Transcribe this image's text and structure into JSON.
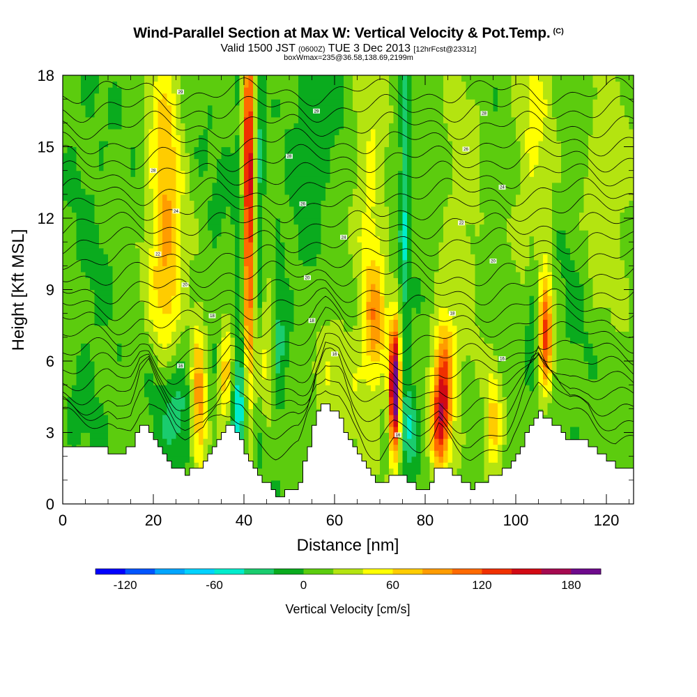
{
  "header": {
    "title": "Wind-Parallel Section at Max W: Vertical Velocity & Pot.Temp.",
    "copyright": "(C)",
    "subtitle_main": "Valid 1500 JST",
    "subtitle_small1": "(0600Z)",
    "subtitle_mid": "TUE 3 Dec 2013",
    "subtitle_small2": "[12hrFcst@2331z]",
    "subtitle2": "boxWmax=235@36.58,138.69,2199m"
  },
  "chart_data": {
    "type": "heatmap",
    "xlabel": "Distance [nm]",
    "ylabel": "Height [Kft MSL]",
    "xlim": [
      0,
      126
    ],
    "ylim": [
      0,
      18
    ],
    "xticks": [
      "0",
      "20",
      "40",
      "60",
      "80",
      "100",
      "120"
    ],
    "yticks": [
      "0",
      "3",
      "6",
      "9",
      "12",
      "15",
      "18"
    ],
    "colorbar": {
      "title": "Vertical Velocity [cm/s]",
      "labels": [
        "-120",
        "-60",
        "0",
        "60",
        "120",
        "180"
      ],
      "min": -140,
      "max": 200,
      "step": 20,
      "colors": [
        "#0000ff",
        "#0055ff",
        "#00a5ff",
        "#00d2ff",
        "#00eccc",
        "#1acc6e",
        "#0aab1e",
        "#5ccc0e",
        "#b4e410",
        "#ffff00",
        "#ffcc00",
        "#ff9c00",
        "#ff6a00",
        "#f03000",
        "#d20a14",
        "#a50a50",
        "#6e0a8c"
      ]
    },
    "terrain": [
      {
        "x": 0,
        "h": 2.3
      },
      {
        "x": 10,
        "h": 2.3
      },
      {
        "x": 12,
        "h": 2.0
      },
      {
        "x": 15,
        "h": 2.3
      },
      {
        "x": 17,
        "h": 3.2
      },
      {
        "x": 19,
        "h": 3.3
      },
      {
        "x": 21,
        "h": 2.5
      },
      {
        "x": 23,
        "h": 2.0
      },
      {
        "x": 25,
        "h": 1.5
      },
      {
        "x": 27,
        "h": 1.3
      },
      {
        "x": 31,
        "h": 1.6
      },
      {
        "x": 35,
        "h": 3.0
      },
      {
        "x": 37,
        "h": 3.3
      },
      {
        "x": 40,
        "h": 2.4
      },
      {
        "x": 43,
        "h": 1.4
      },
      {
        "x": 47,
        "h": 0.4
      },
      {
        "x": 52,
        "h": 0.5
      },
      {
        "x": 56,
        "h": 3.6
      },
      {
        "x": 58,
        "h": 4.2
      },
      {
        "x": 61,
        "h": 3.7
      },
      {
        "x": 64,
        "h": 2.4
      },
      {
        "x": 67,
        "h": 1.5
      },
      {
        "x": 70,
        "h": 0.7
      },
      {
        "x": 73,
        "h": 1.3
      },
      {
        "x": 76,
        "h": 1.1
      },
      {
        "x": 79,
        "h": 0.4
      },
      {
        "x": 81,
        "h": 0.6
      },
      {
        "x": 83,
        "h": 1.6
      },
      {
        "x": 86,
        "h": 1.3
      },
      {
        "x": 90,
        "h": 0.7
      },
      {
        "x": 94,
        "h": 1.0
      },
      {
        "x": 98,
        "h": 1.4
      },
      {
        "x": 102,
        "h": 2.7
      },
      {
        "x": 105,
        "h": 3.9
      },
      {
        "x": 108,
        "h": 3.5
      },
      {
        "x": 112,
        "h": 2.6
      },
      {
        "x": 116,
        "h": 2.6
      },
      {
        "x": 119,
        "h": 2.1
      },
      {
        "x": 122,
        "h": 1.6
      },
      {
        "x": 126,
        "h": 1.6
      }
    ],
    "w_field": [
      {
        "x": 6,
        "z": 8,
        "sx": 4,
        "sz": 12,
        "amp": -10
      },
      {
        "x": 22.5,
        "z": 14,
        "sx": 2.5,
        "sz": 5,
        "amp": 58
      },
      {
        "x": 23.5,
        "z": 9.5,
        "sx": 3,
        "sz": 3,
        "amp": 35
      },
      {
        "x": 25,
        "z": 4.3,
        "sx": 3.5,
        "sz": 1.8,
        "amp": -45
      },
      {
        "x": 30,
        "z": 4.5,
        "sx": 1.3,
        "sz": 2.4,
        "amp": 95
      },
      {
        "x": 36,
        "z": 5.2,
        "sx": 1.2,
        "sz": 1.8,
        "amp": 75
      },
      {
        "x": 34,
        "z": 9,
        "sx": 3,
        "sz": 9,
        "amp": -8
      },
      {
        "x": 38.5,
        "z": 3.8,
        "sx": 1.5,
        "sz": 1.6,
        "amp": -48
      },
      {
        "x": 39.5,
        "z": 11,
        "sx": 0.9,
        "sz": 6,
        "amp": -50
      },
      {
        "x": 41.0,
        "z": 13.5,
        "sx": 1.05,
        "sz": 6,
        "amp": 165
      },
      {
        "x": 43.0,
        "z": 13,
        "sx": 1.0,
        "sz": 6,
        "amp": -45
      },
      {
        "x": 47.5,
        "z": 7,
        "sx": 1.2,
        "sz": 2.8,
        "amp": -42
      },
      {
        "x": 45,
        "z": 7,
        "sx": 1.8,
        "sz": 2.5,
        "amp": 40
      },
      {
        "x": 53,
        "z": 13,
        "sx": 2.5,
        "sz": 6,
        "amp": -12
      },
      {
        "x": 57,
        "z": 17,
        "sx": 3,
        "sz": 3,
        "amp": -18
      },
      {
        "x": 60,
        "z": 5,
        "sx": 5,
        "sz": 2,
        "amp": 28
      },
      {
        "x": 68,
        "z": 12,
        "sx": 2.5,
        "sz": 6,
        "amp": 38
      },
      {
        "x": 69,
        "z": 7.5,
        "sx": 1.6,
        "sz": 1.6,
        "amp": 60
      },
      {
        "x": 73.3,
        "z": 4.8,
        "sx": 0.85,
        "sz": 1.9,
        "amp": 205
      },
      {
        "x": 75.5,
        "z": 12,
        "sx": 0.8,
        "sz": 5,
        "amp": -45
      },
      {
        "x": 76.5,
        "z": 3.3,
        "sx": 1.2,
        "sz": 1.3,
        "amp": -45
      },
      {
        "x": 84,
        "z": 5,
        "sx": 1.6,
        "sz": 1.9,
        "amp": 120
      },
      {
        "x": 83,
        "z": 3,
        "sx": 1.3,
        "sz": 1.3,
        "amp": 70
      },
      {
        "x": 95,
        "z": 3.3,
        "sx": 1.3,
        "sz": 1.8,
        "amp": 58
      },
      {
        "x": 88,
        "z": 12,
        "sx": 3,
        "sz": 6,
        "amp": 25
      },
      {
        "x": 106.5,
        "z": 7.2,
        "sx": 1.1,
        "sz": 1.8,
        "amp": 115
      },
      {
        "x": 104,
        "z": 8,
        "sx": 1.2,
        "sz": 1.5,
        "amp": -40
      },
      {
        "x": 104,
        "z": 16,
        "sx": 3,
        "sz": 5,
        "amp": 35
      },
      {
        "x": 113,
        "z": 8,
        "sx": 3.5,
        "sz": 4,
        "amp": -12
      },
      {
        "x": 120,
        "z": 13,
        "sx": 4,
        "sz": 4,
        "amp": 30
      }
    ],
    "theta_contours": {
      "isolines": [
        1.9,
        2.6,
        3.3,
        4.0,
        4.7,
        5.4,
        6.1,
        6.8,
        7.5,
        8.2,
        8.9,
        9.6,
        10.3,
        11.0,
        11.7,
        12.4,
        13.1,
        13.8,
        14.5,
        15.2,
        15.9,
        16.6,
        17.3
      ],
      "labels": [
        {
          "x": 26,
          "z": 17.3,
          "text": "29"
        },
        {
          "x": 20,
          "z": 14.0,
          "text": "28"
        },
        {
          "x": 25,
          "z": 12.3,
          "text": "24"
        },
        {
          "x": 21,
          "z": 10.5,
          "text": "22"
        },
        {
          "x": 27,
          "z": 9.2,
          "text": "20"
        },
        {
          "x": 33,
          "z": 7.9,
          "text": "18"
        },
        {
          "x": 26,
          "z": 5.8,
          "text": "16"
        },
        {
          "x": 56,
          "z": 16.5,
          "text": "29"
        },
        {
          "x": 50,
          "z": 14.6,
          "text": "28"
        },
        {
          "x": 53,
          "z": 12.6,
          "text": "26"
        },
        {
          "x": 62,
          "z": 11.2,
          "text": "24"
        },
        {
          "x": 54,
          "z": 9.5,
          "text": "20"
        },
        {
          "x": 55,
          "z": 7.7,
          "text": "18"
        },
        {
          "x": 60,
          "z": 6.3,
          "text": "16"
        },
        {
          "x": 93,
          "z": 16.4,
          "text": "28"
        },
        {
          "x": 89,
          "z": 14.9,
          "text": "26"
        },
        {
          "x": 97,
          "z": 13.3,
          "text": "24"
        },
        {
          "x": 88,
          "z": 11.8,
          "text": "22"
        },
        {
          "x": 95,
          "z": 10.2,
          "text": "20"
        },
        {
          "x": 86,
          "z": 8.0,
          "text": "18"
        },
        {
          "x": 97,
          "z": 6.1,
          "text": "16"
        },
        {
          "x": 74,
          "z": 2.9,
          "text": "16"
        }
      ]
    }
  }
}
